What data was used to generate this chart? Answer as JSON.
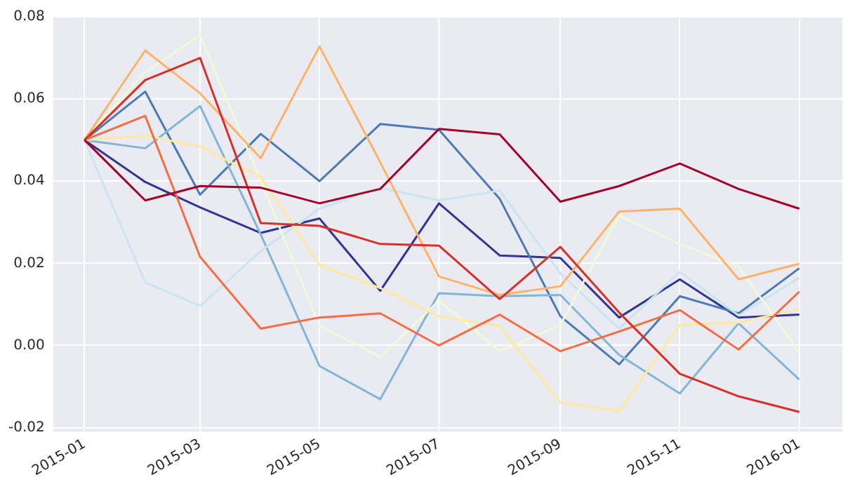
{
  "chart_data": {
    "type": "line",
    "x": [
      "2015-01",
      "2015-02",
      "2015-03",
      "2015-04",
      "2015-05",
      "2015-06",
      "2015-07",
      "2015-08",
      "2015-09",
      "2015-10",
      "2015-11",
      "2015-12",
      "2016-01"
    ],
    "series": [
      {
        "color": "#a50026",
        "values": [
          0.05,
          0.0353,
          0.0388,
          0.0384,
          0.0346,
          0.0381,
          0.0527,
          0.0514,
          0.035,
          0.0388,
          0.0443,
          0.0381,
          0.0333
        ]
      },
      {
        "color": "#d73027",
        "values": [
          0.05,
          0.0646,
          0.07,
          0.0298,
          0.0291,
          0.0247,
          0.0243,
          0.0113,
          0.024,
          0.008,
          -0.0069,
          -0.0124,
          -0.0162
        ]
      },
      {
        "color": "#f46d43",
        "values": [
          0.05,
          0.0559,
          0.0216,
          0.0041,
          0.0068,
          0.0078,
          0.0,
          0.0075,
          -0.0014,
          0.0034,
          0.0086,
          -0.001,
          0.0131
        ]
      },
      {
        "color": "#fdb366",
        "values": [
          0.05,
          0.0718,
          0.0614,
          0.0456,
          0.0728,
          0.0446,
          0.0168,
          0.0123,
          0.0144,
          0.0326,
          0.0333,
          0.0161,
          0.0199
        ]
      },
      {
        "color": "#fee99d",
        "values": [
          0.05,
          0.0511,
          0.0484,
          0.041,
          0.0195,
          0.014,
          0.0071,
          0.0047,
          -0.0139,
          -0.016,
          0.005,
          0.0056,
          0.0089
        ]
      },
      {
        "color": "#f2f9d8",
        "values": [
          0.05,
          0.0666,
          0.0755,
          0.04,
          0.0048,
          -0.0028,
          0.0109,
          -0.0014,
          0.005,
          0.0316,
          0.0247,
          0.0192,
          -0.0017
        ]
      },
      {
        "color": "#c9e6f0",
        "values": [
          0.05,
          0.0154,
          0.0096,
          0.023,
          0.0333,
          0.0384,
          0.0353,
          0.0377,
          0.0175,
          0.0041,
          0.0179,
          0.0073,
          0.0165
        ]
      },
      {
        "color": "#80b6d6",
        "values": [
          0.05,
          0.048,
          0.0583,
          0.027,
          -0.005,
          -0.0131,
          0.0127,
          0.012,
          0.0123,
          -0.0023,
          -0.0117,
          0.0054,
          -0.0083
        ]
      },
      {
        "color": "#4a7bb7",
        "values": [
          0.05,
          0.0618,
          0.0367,
          0.0515,
          0.04,
          0.0539,
          0.0525,
          0.0357,
          0.0071,
          -0.0046,
          0.012,
          0.0078,
          0.0188
        ]
      },
      {
        "color": "#313695",
        "values": [
          0.05,
          0.0398,
          0.0336,
          0.0274,
          0.0309,
          0.0133,
          0.0346,
          0.0219,
          0.0213,
          0.0068,
          0.0161,
          0.0068,
          0.0075
        ]
      }
    ],
    "xlim": [
      "2014-12-16",
      "2016-01-23"
    ],
    "xticks": [
      "2015-01",
      "2015-03",
      "2015-05",
      "2015-07",
      "2015-09",
      "2015-11",
      "2016-01"
    ],
    "ylim": [
      -0.021,
      0.08
    ],
    "yticks": [
      {
        "value": -0.02,
        "label": "-0.02"
      },
      {
        "value": 0,
        "label": "0.00"
      },
      0.02,
      0.04,
      0.06,
      0.08
    ],
    "grid": true,
    "legend": false,
    "marker": "none",
    "line_style": "solid"
  }
}
